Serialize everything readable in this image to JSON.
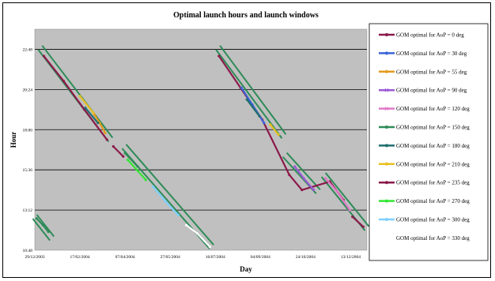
{
  "chart_data": {
    "type": "line",
    "title": "Optimal launch hours and launch windows",
    "xlabel": "Day",
    "ylabel": "Hour",
    "x_ticks": [
      "29/12/2003",
      "17/02/2004",
      "07/04/2004",
      "27/05/2004",
      "16/07/2004",
      "04/09/2004",
      "24/10/2004",
      "13/12/2004"
    ],
    "y_ticks": [
      "10:48",
      "13:12",
      "15:36",
      "18:00",
      "20:24",
      "22:48"
    ],
    "xlim": [
      "2003-12-29",
      "2004-12-31"
    ],
    "ylim": [
      10.8,
      24.0
    ],
    "grid": "horizontal",
    "legend_position": "right",
    "plot_background": "#c0c0c0",
    "window_color": "#2e8b57",
    "series": [
      {
        "name": "GOM optimal for AoP = 0 deg",
        "color": "#8b1a4a",
        "marker": "circle",
        "points": [
          [
            "2004-01-08",
            22.4
          ],
          [
            "2004-01-30",
            20.9
          ],
          [
            "2004-02-22",
            19.2
          ],
          [
            "2004-03-18",
            17.4
          ],
          [
            "2004-07-20",
            22.4
          ],
          [
            "2004-08-13",
            20.5
          ],
          [
            "2004-09-06",
            18.6
          ],
          [
            "2004-10-06",
            15.3
          ],
          [
            "2004-10-20",
            14.4
          ],
          [
            "2004-11-20",
            14.9
          ],
          [
            "2004-12-05",
            13.8
          ]
        ]
      },
      {
        "name": "GOM optimal for AoP = 30 deg",
        "color": "#3a63d8",
        "marker": "circle",
        "points": [
          [
            "2004-08-14",
            20.5
          ],
          [
            "2004-08-26",
            19.5
          ],
          [
            "2004-09-08",
            18.4
          ]
        ]
      },
      {
        "name": "GOM optimal for AoP = 55 deg",
        "color": "#e39a1c",
        "marker": "diamond",
        "points": [
          [
            "2004-03-04",
            18.9
          ],
          [
            "2004-03-10",
            18.4
          ],
          [
            "2004-03-16",
            17.8
          ]
        ]
      },
      {
        "name": "GOM optimal for AoP = 90 deg",
        "color": "#9a59d6",
        "marker": "cross",
        "points": [
          [
            "2004-10-12",
            15.8
          ],
          [
            "2004-10-22",
            15.1
          ],
          [
            "2004-11-02",
            14.4
          ]
        ]
      },
      {
        "name": "GOM optimal for AoP = 120 deg",
        "color": "#e078c8",
        "marker": "cross",
        "points": [
          [
            "2004-11-15",
            15.1
          ],
          [
            "2004-11-28",
            14.3
          ],
          [
            "2004-12-12",
            13.2
          ]
        ]
      },
      {
        "name": "GOM optimal for AoP = 150 deg",
        "color": "#2e8b57",
        "marker": "circle",
        "points": [
          [
            "2003-12-31",
            12.7
          ],
          [
            "2004-01-07",
            12.3
          ],
          [
            "2004-01-13",
            11.9
          ],
          [
            "2004-04-07",
            16.6
          ],
          [
            "2004-04-21",
            15.8
          ]
        ]
      },
      {
        "name": "GOM optimal for AoP = 180 deg",
        "color": "#1f6e6e",
        "marker": "circle",
        "points": [
          [
            "2004-02-23",
            19.3
          ],
          [
            "2004-03-08",
            18.4
          ],
          [
            "2004-08-20",
            19.8
          ],
          [
            "2004-09-03",
            18.8
          ]
        ]
      },
      {
        "name": "GOM optimal for AoP = 210 deg",
        "color": "#e8c020",
        "marker": "circle",
        "points": [
          [
            "2004-02-17",
            20.0
          ],
          [
            "2004-03-03",
            19.0
          ],
          [
            "2004-09-15",
            18.3
          ],
          [
            "2004-09-24",
            17.7
          ]
        ]
      },
      {
        "name": "GOM optimal for AoP = 235 deg",
        "color": "#8b1a4a",
        "marker": "circle",
        "points": [
          [
            "2004-03-25",
            17.0
          ],
          [
            "2004-04-05",
            16.4
          ],
          [
            "2004-12-15",
            12.8
          ],
          [
            "2004-12-27",
            12.2
          ]
        ]
      },
      {
        "name": "GOM optimal for AoP = 270 deg",
        "color": "#33e633",
        "marker": "circle",
        "points": [
          [
            "2004-04-10",
            16.2
          ],
          [
            "2004-04-20",
            15.6
          ],
          [
            "2004-04-30",
            15.0
          ]
        ]
      },
      {
        "name": "GOM optimal for AoP = 300 deg",
        "color": "#7fd0ff",
        "marker": "circle",
        "points": [
          [
            "2004-05-08",
            14.6
          ],
          [
            "2004-05-22",
            13.7
          ],
          [
            "2004-06-05",
            12.9
          ]
        ]
      },
      {
        "name": "GOM optimal for AoP = 330 deg",
        "color": "#ffffff",
        "marker": "circle",
        "points": [
          [
            "2004-06-14",
            12.3
          ],
          [
            "2004-06-26",
            11.8
          ],
          [
            "2004-07-10",
            11.0
          ]
        ]
      }
    ],
    "windows": [
      {
        "start": [
          "2003-12-29",
          12.8
        ],
        "end": [
          "2004-01-17",
          11.5
        ]
      },
      {
        "start": [
          "2004-01-04",
          22.9
        ],
        "end": [
          "2004-03-22",
          17.4
        ]
      },
      {
        "start": [
          "2004-04-06",
          17.0
        ],
        "end": [
          "2004-07-12",
          11.0
        ]
      },
      {
        "start": [
          "2004-07-19",
          22.9
        ],
        "end": [
          "2004-09-30",
          17.6
        ]
      },
      {
        "start": [
          "2004-10-01",
          16.5
        ],
        "end": [
          "2004-11-07",
          14.3
        ]
      },
      {
        "start": [
          "2004-11-13",
          15.3
        ],
        "end": [
          "2004-12-31",
          12.1
        ]
      }
    ]
  }
}
